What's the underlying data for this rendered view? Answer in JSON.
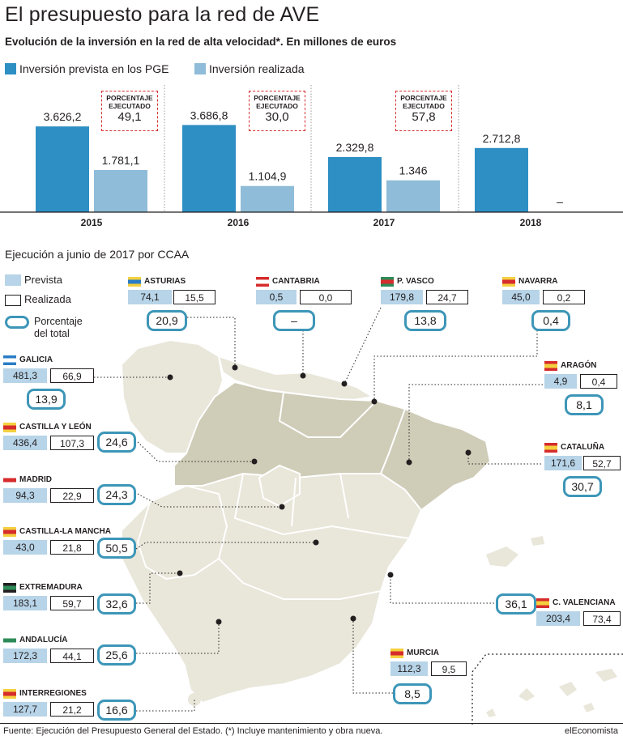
{
  "title": "El presupuesto para la red de AVE",
  "subtitle": "Evolución de la inversión en la red de alta velocidad*. En millones de euros",
  "legend": {
    "prevista": "Inversión prevista en los PGE",
    "realizada": "Inversión realizada"
  },
  "colors": {
    "prevista": "#2e8fc4",
    "realizada": "#8fbcd8",
    "prevista_light": "#b7d4e8",
    "dashed_red": "#d62c2c",
    "map_dark": "#cfccb8",
    "map_light": "#e9e6da",
    "pct_border": "#3d96b8"
  },
  "pct_label": "PORCENTAJE\nEJECUTADO",
  "chart_data": {
    "type": "bar",
    "categories": [
      "2015",
      "2016",
      "2017",
      "2018"
    ],
    "series": [
      {
        "name": "Inversión prevista en los PGE",
        "values": [
          3626.2,
          3686.8,
          2329.8,
          2712.8
        ],
        "labels": [
          "3.626,2",
          "3.686,8",
          "2.329,8",
          "2.712,8"
        ]
      },
      {
        "name": "Inversión realizada",
        "values": [
          1781.1,
          1104.9,
          1346,
          null
        ],
        "labels": [
          "1.781,1",
          "1.104,9",
          "1.346",
          "–"
        ]
      }
    ],
    "porcentaje_ejecutado": [
      "49,1",
      "30,0",
      "57,8",
      null
    ],
    "ylim": [
      0,
      4000
    ]
  },
  "map_section": {
    "title": "Ejecución a junio de 2017 por CCAA",
    "legend_prevista": "Prevista",
    "legend_realizada": "Realizada",
    "legend_porcentaje": "Porcentaje\ndel total"
  },
  "regions": [
    {
      "id": "asturias",
      "name": "ASTURIAS",
      "prevista": "74,1",
      "realizada": "15,5",
      "porcentaje": "20,9"
    },
    {
      "id": "cantabria",
      "name": "CANTABRIA",
      "prevista": "0,5",
      "realizada": "0,0",
      "porcentaje": "–"
    },
    {
      "id": "pvasco",
      "name": "P. VASCO",
      "prevista": "179,8",
      "realizada": "24,7",
      "porcentaje": "13,8"
    },
    {
      "id": "navarra",
      "name": "NAVARRA",
      "prevista": "45,0",
      "realizada": "0,2",
      "porcentaje": "0,4"
    },
    {
      "id": "galicia",
      "name": "GALICIA",
      "prevista": "481,3",
      "realizada": "66,9",
      "porcentaje": "13,9"
    },
    {
      "id": "aragon",
      "name": "ARAGÓN",
      "prevista": "4,9",
      "realizada": "0,4",
      "porcentaje": "8,1"
    },
    {
      "id": "castillaleon",
      "name": "CASTILLA Y LEÓN",
      "prevista": "436,4",
      "realizada": "107,3",
      "porcentaje": "24,6"
    },
    {
      "id": "cataluna",
      "name": "CATALUÑA",
      "prevista": "171,6",
      "realizada": "52,7",
      "porcentaje": "30,7"
    },
    {
      "id": "madrid",
      "name": "MADRID",
      "prevista": "94,3",
      "realizada": "22,9",
      "porcentaje": "24,3"
    },
    {
      "id": "clamancha",
      "name": "CASTILLA-LA MANCHA",
      "prevista": "43,0",
      "realizada": "21,8",
      "porcentaje": "50,5"
    },
    {
      "id": "extremadura",
      "name": "EXTREMADURA",
      "prevista": "183,1",
      "realizada": "59,7",
      "porcentaje": "32,6"
    },
    {
      "id": "cvalenciana",
      "name": "C. VALENCIANA",
      "prevista": "203,4",
      "realizada": "73,4",
      "porcentaje": "36,1"
    },
    {
      "id": "andalucia",
      "name": "ANDALUCÍA",
      "prevista": "172,3",
      "realizada": "44,1",
      "porcentaje": "25,6"
    },
    {
      "id": "murcia",
      "name": "MURCIA",
      "prevista": "112,3",
      "realizada": "9,5",
      "porcentaje": "8,5"
    },
    {
      "id": "interregiones",
      "name": "INTERREGIONES",
      "prevista": "127,7",
      "realizada": "21,2",
      "porcentaje": "16,6"
    }
  ],
  "footer": {
    "source": "Fuente: Ejecución del Presupuesto General del Estado. (*) Incluye mantenimiento y obra nueva.",
    "brand": "elEconomista"
  }
}
